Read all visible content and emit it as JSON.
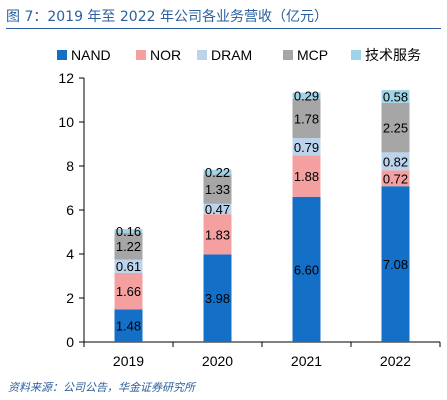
{
  "figure": {
    "title": "图 7：2019 年至 2022 年公司各业务营收（亿元）",
    "source": "资料来源：公司公告，华金证券研究所"
  },
  "chart_data": {
    "type": "bar",
    "stacked": true,
    "categories": [
      "2019",
      "2020",
      "2021",
      "2022"
    ],
    "series": [
      {
        "name": "NAND",
        "color": "#1470c6",
        "values": [
          1.48,
          3.98,
          6.6,
          7.08
        ]
      },
      {
        "name": "NOR",
        "color": "#f4a0a0",
        "values": [
          1.66,
          1.83,
          1.88,
          0.72
        ]
      },
      {
        "name": "DRAM",
        "color": "#bcd3ec",
        "values": [
          0.61,
          0.47,
          0.79,
          0.82
        ]
      },
      {
        "name": "MCP",
        "color": "#a6a6a6",
        "values": [
          1.22,
          1.33,
          1.78,
          2.25
        ]
      },
      {
        "name": "技术服务",
        "color": "#9fd4e6",
        "values": [
          0.16,
          0.22,
          0.29,
          0.58
        ]
      }
    ],
    "data_labels": [
      [
        "1.48",
        "3.98",
        "6.60",
        "7.08"
      ],
      [
        "1.66",
        "1.83",
        "1.88",
        "0.72"
      ],
      [
        "0.61",
        "0.47",
        "0.79",
        "0.82"
      ],
      [
        "1.22",
        "1.33",
        "1.78",
        "2.25"
      ],
      [
        "0.16",
        "0.22",
        "0.29",
        "0.58"
      ]
    ],
    "yticks": [
      "0",
      "2",
      "4",
      "6",
      "8",
      "10",
      "12"
    ],
    "ylim": [
      0,
      12
    ],
    "legend_position": "top",
    "grid": false
  }
}
